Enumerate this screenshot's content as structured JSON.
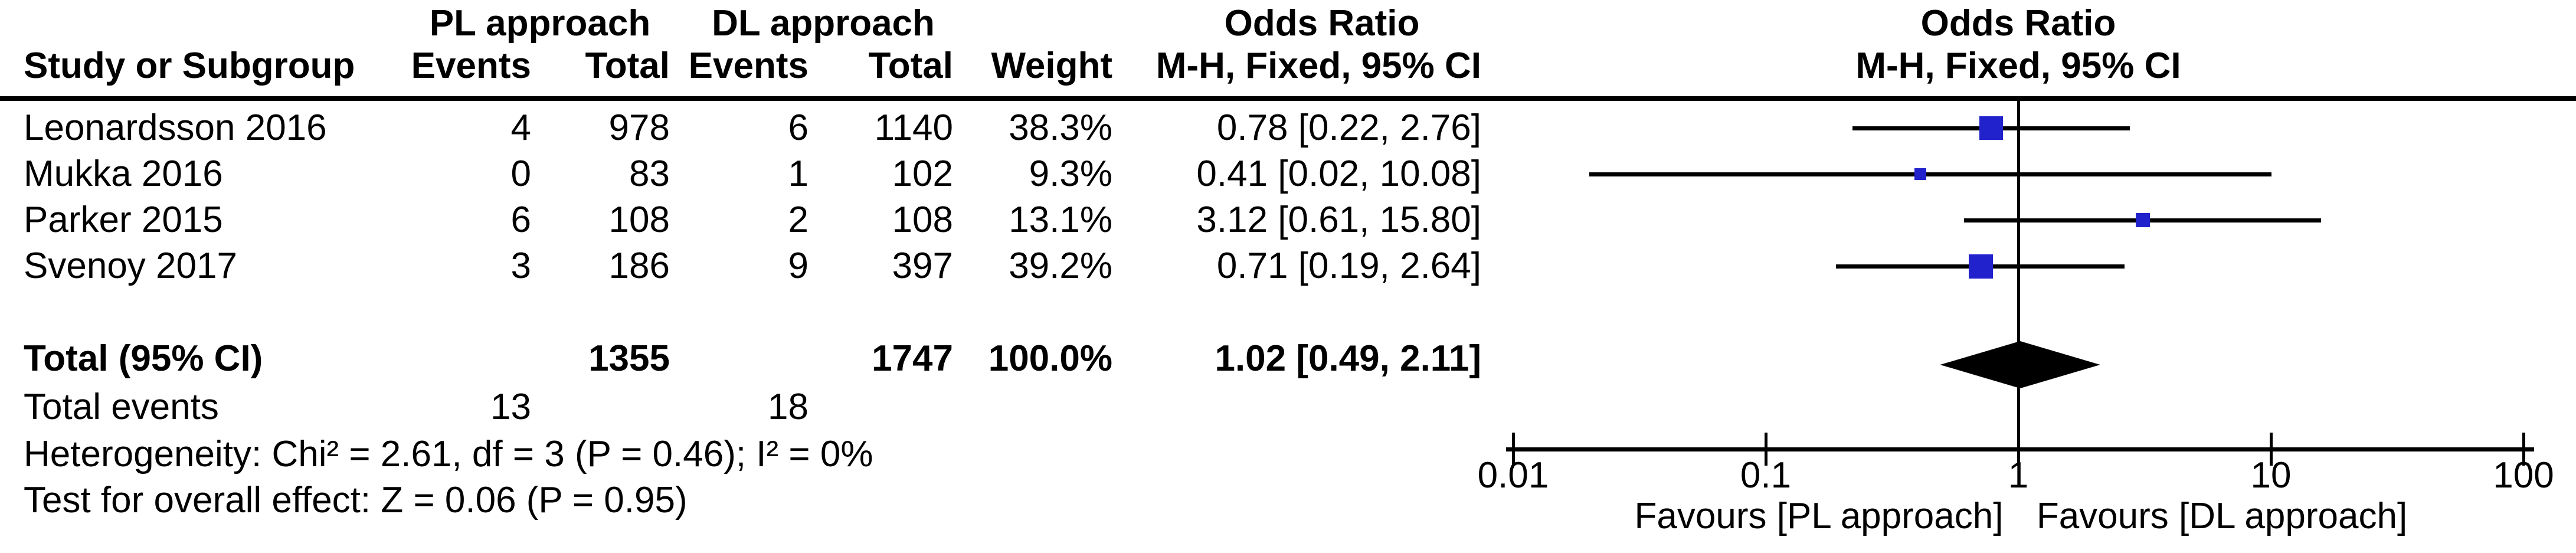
{
  "table": {
    "group1_label": "PL approach",
    "group2_label": "DL approach",
    "or_col_label": "Odds Ratio",
    "method_label": "M-H, Fixed, 95% CI",
    "col_study": "Study or Subgroup",
    "col_events": "Events",
    "col_total": "Total",
    "col_weight": "Weight",
    "rows": [
      {
        "study": "Leonardsson 2016",
        "e1": "4",
        "t1": "978",
        "e2": "6",
        "t2": "1140",
        "weight": "38.3%",
        "or_ci": "0.78 [0.22, 2.76]"
      },
      {
        "study": "Mukka 2016",
        "e1": "0",
        "t1": "83",
        "e2": "1",
        "t2": "102",
        "weight": "9.3%",
        "or_ci": "0.41 [0.02, 10.08]"
      },
      {
        "study": "Parker 2015",
        "e1": "6",
        "t1": "108",
        "e2": "2",
        "t2": "108",
        "weight": "13.1%",
        "or_ci": "3.12 [0.61, 15.80]"
      },
      {
        "study": "Svenoy 2017",
        "e1": "3",
        "t1": "186",
        "e2": "9",
        "t2": "397",
        "weight": "39.2%",
        "or_ci": "0.71 [0.19, 2.64]"
      }
    ],
    "total_row": {
      "label": "Total (95% CI)",
      "t1": "1355",
      "t2": "1747",
      "weight": "100.0%",
      "or_ci": "1.02 [0.49, 2.11]"
    },
    "total_events": {
      "label": "Total events",
      "e1": "13",
      "e2": "18"
    },
    "heterogeneity": "Heterogeneity: Chi² = 2.61, df = 3 (P = 0.46); I² = 0%",
    "overall_effect": "Test for overall effect: Z = 0.06 (P = 0.95)"
  },
  "plot": {
    "header1": "Odds Ratio",
    "header2": "M-H, Fixed, 95% CI",
    "favours_left": "Favours [PL approach]",
    "favours_right": "Favours [DL approach]",
    "marker_color": "#2222CD",
    "line_color": "#000000"
  },
  "chart_data": {
    "type": "forest",
    "x_scale": "log10",
    "x_ticks": [
      0.01,
      0.1,
      1,
      10,
      100
    ],
    "x_range": [
      0.01,
      100
    ],
    "null_line": 1,
    "effect_label": "Odds Ratio, M-H, Fixed, 95% CI",
    "studies": [
      {
        "name": "Leonardsson 2016",
        "events_pl": 4,
        "total_pl": 978,
        "events_dl": 6,
        "total_dl": 1140,
        "weight_pct": 38.3,
        "or": 0.78,
        "ci_low": 0.22,
        "ci_high": 2.76
      },
      {
        "name": "Mukka 2016",
        "events_pl": 0,
        "total_pl": 83,
        "events_dl": 1,
        "total_dl": 102,
        "weight_pct": 9.3,
        "or": 0.41,
        "ci_low": 0.02,
        "ci_high": 10.08
      },
      {
        "name": "Parker 2015",
        "events_pl": 6,
        "total_pl": 108,
        "events_dl": 2,
        "total_dl": 108,
        "weight_pct": 13.1,
        "or": 3.12,
        "ci_low": 0.61,
        "ci_high": 15.8
      },
      {
        "name": "Svenoy 2017",
        "events_pl": 3,
        "total_pl": 186,
        "events_dl": 9,
        "total_dl": 397,
        "weight_pct": 39.2,
        "or": 0.71,
        "ci_low": 0.19,
        "ci_high": 2.64
      }
    ],
    "total": {
      "label": "Total (95% CI)",
      "total_pl": 1355,
      "total_dl": 1747,
      "weight_pct": 100.0,
      "or": 1.02,
      "ci_low": 0.49,
      "ci_high": 2.11,
      "total_events_pl": 13,
      "total_events_dl": 18
    },
    "heterogeneity": {
      "chi2": 2.61,
      "df": 3,
      "p": 0.46,
      "i2_pct": 0
    },
    "overall_effect": {
      "z": 0.06,
      "p": 0.95
    }
  }
}
